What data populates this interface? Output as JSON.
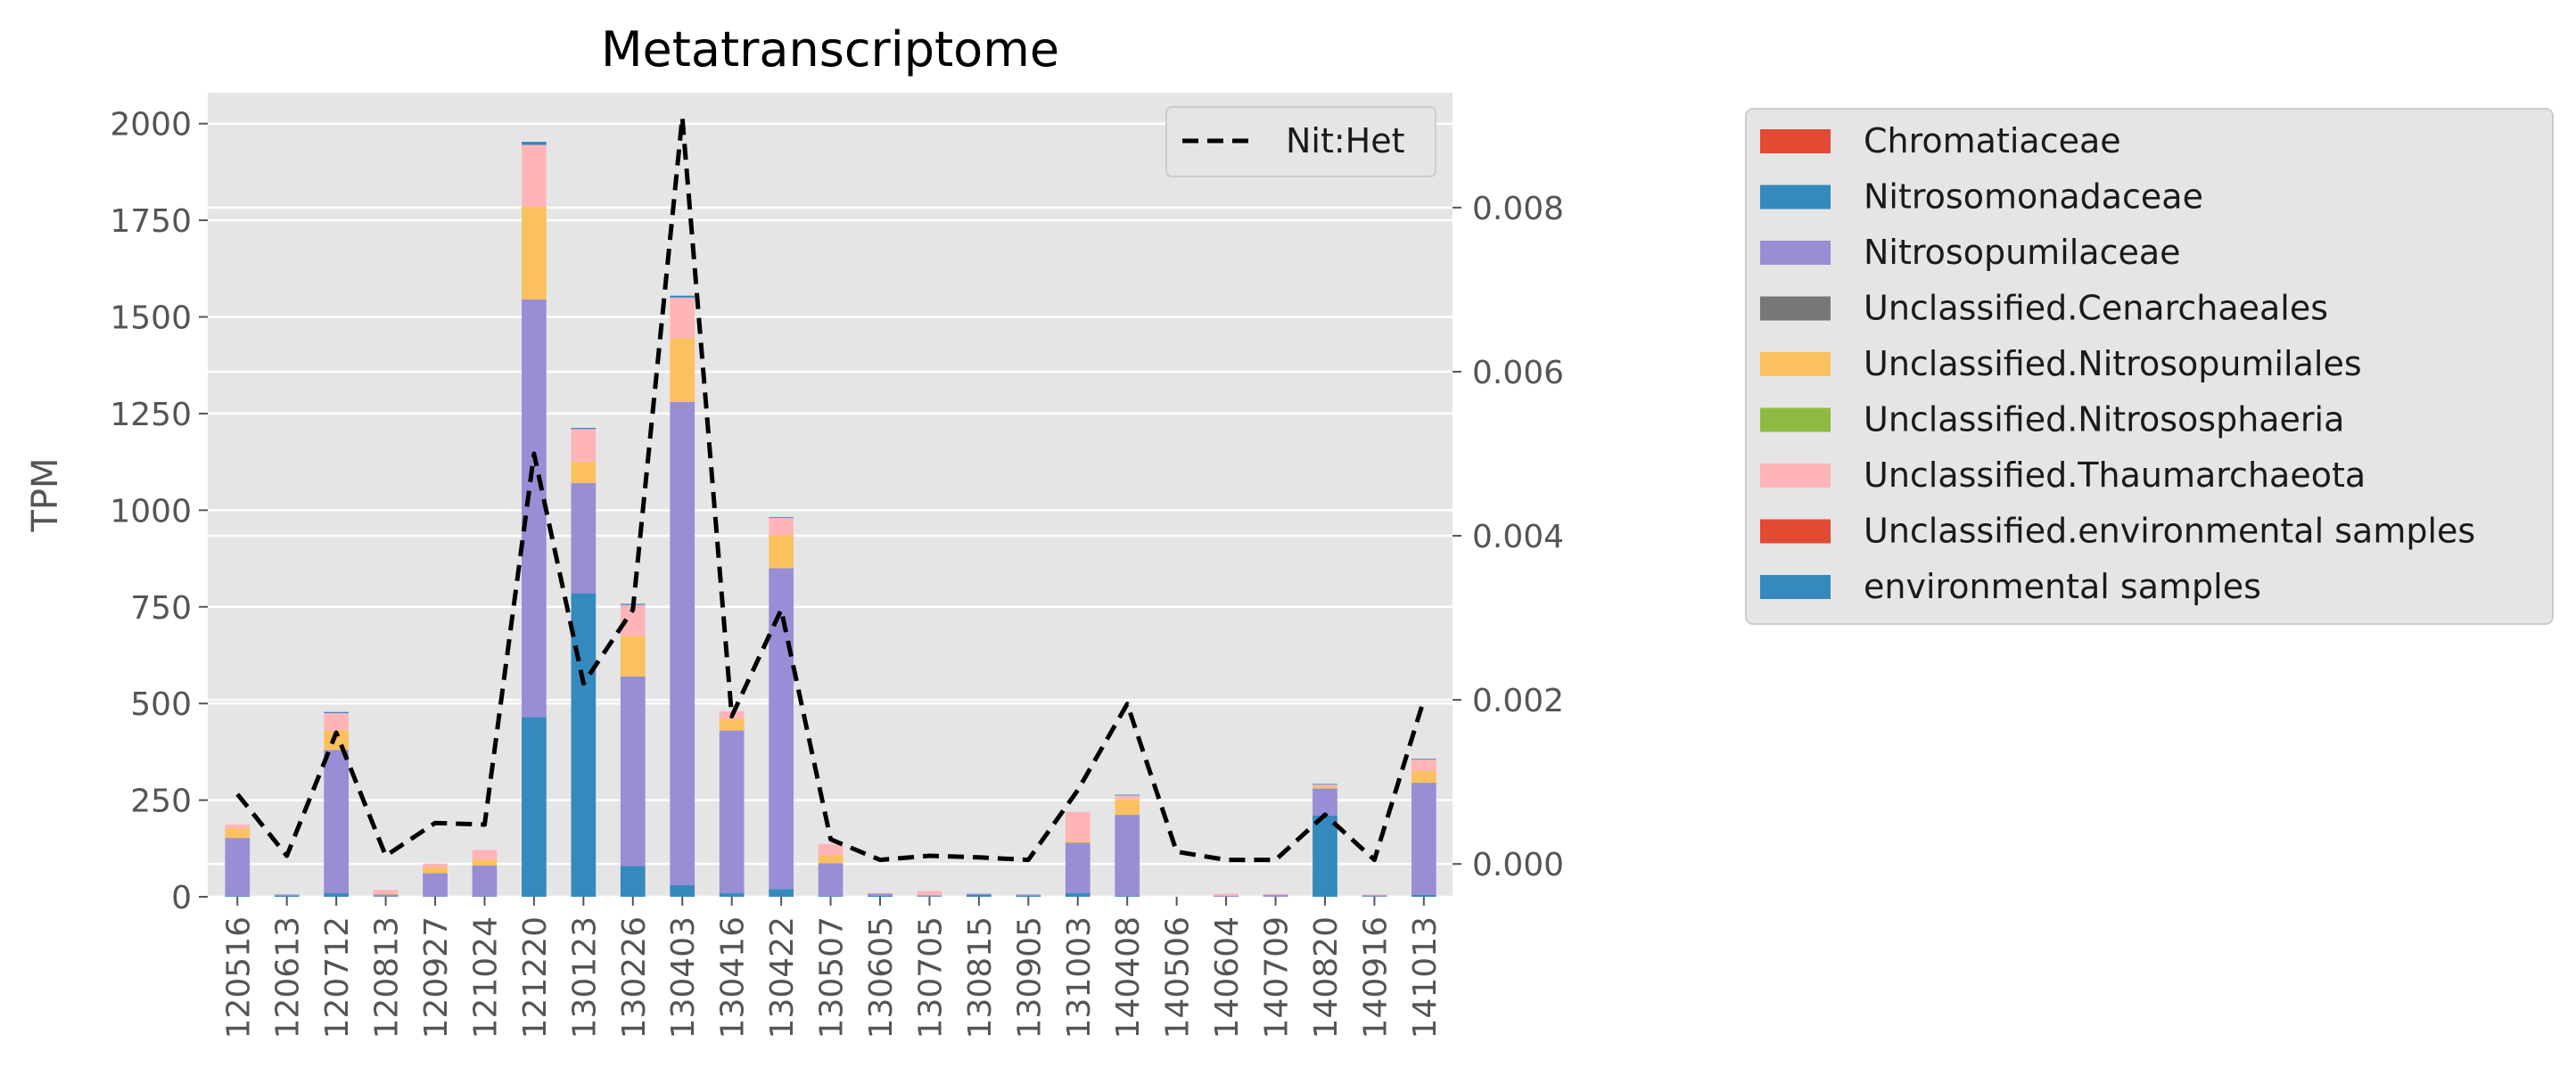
{
  "chart_data": {
    "type": "bar",
    "title": "Metatranscriptome",
    "ylabel": "TPM",
    "xlabel": "",
    "ylim": [
      0,
      2000
    ],
    "y_ticks": [
      0,
      250,
      500,
      750,
      1000,
      1250,
      1500,
      1750,
      2000
    ],
    "y2lim": [
      -0.0004,
      0.0094
    ],
    "y2_ticks": [
      "0.000",
      "0.002",
      "0.004",
      "0.006",
      "0.008"
    ],
    "y2_tick_values": [
      0,
      0.002,
      0.004,
      0.006,
      0.008
    ],
    "grid": true,
    "stacked": true,
    "categories": [
      "120516",
      "120613",
      "120712",
      "120813",
      "120927",
      "121024",
      "121220",
      "130123",
      "130226",
      "130403",
      "130416",
      "130422",
      "130507",
      "130605",
      "130705",
      "130815",
      "130905",
      "131003",
      "140408",
      "140506",
      "140604",
      "140709",
      "140820",
      "140916",
      "141013"
    ],
    "series": [
      {
        "name": "Chromatiaceae",
        "color": "#E24A33",
        "values": [
          0,
          0,
          0,
          0,
          0,
          0,
          0,
          0,
          0,
          0,
          0,
          0,
          0,
          0,
          0,
          0,
          0,
          0,
          0,
          0,
          0,
          0,
          0,
          0,
          0
        ]
      },
      {
        "name": "Nitrosomonadaceae",
        "color": "#348ABD",
        "values": [
          2,
          3,
          10,
          1,
          1,
          1,
          465,
          785,
          80,
          30,
          10,
          20,
          2,
          3,
          1,
          5,
          3,
          10,
          2,
          0,
          0,
          0,
          210,
          1,
          5
        ]
      },
      {
        "name": "Nitrosopumilaceae",
        "color": "#988ED5",
        "values": [
          150,
          3,
          370,
          5,
          60,
          80,
          1080,
          285,
          490,
          1250,
          420,
          830,
          85,
          5,
          3,
          3,
          3,
          130,
          210,
          0,
          3,
          5,
          70,
          3,
          290
        ]
      },
      {
        "name": "Unclassified.Cenarchaeales",
        "color": "#777777",
        "values": [
          0,
          0,
          0,
          0,
          0,
          0,
          0,
          0,
          0,
          0,
          0,
          0,
          0,
          0,
          0,
          0,
          0,
          0,
          0,
          0,
          0,
          0,
          0,
          0,
          0
        ]
      },
      {
        "name": "Unclassified.Nitrosopumilales",
        "color": "#FBC15E",
        "values": [
          25,
          0,
          50,
          2,
          15,
          15,
          240,
          55,
          105,
          165,
          30,
          85,
          20,
          0,
          1,
          0,
          0,
          5,
          40,
          0,
          0,
          0,
          5,
          0,
          30
        ]
      },
      {
        "name": "Unclassified.Nitrososphaeria",
        "color": "#8EBA42",
        "values": [
          0,
          0,
          0,
          0,
          0,
          0,
          0,
          0,
          0,
          0,
          0,
          0,
          0,
          0,
          0,
          0,
          0,
          0,
          0,
          0,
          0,
          0,
          0,
          0,
          0
        ]
      },
      {
        "name": "Unclassified.Thaumarchaeota",
        "color": "#FFB5B8",
        "values": [
          10,
          0,
          45,
          10,
          10,
          25,
          160,
          85,
          80,
          105,
          20,
          45,
          30,
          2,
          10,
          0,
          0,
          75,
          10,
          0,
          5,
          3,
          5,
          2,
          30
        ]
      },
      {
        "name": "Unclassified.environmental samples",
        "color": "#E24A33",
        "values": [
          0,
          0,
          0,
          0,
          0,
          0,
          0,
          0,
          0,
          0,
          0,
          0,
          0,
          0,
          0,
          0,
          0,
          0,
          0,
          0,
          0,
          0,
          0,
          0,
          0
        ]
      },
      {
        "name": "environmental samples",
        "color": "#348ABD",
        "values": [
          0,
          0,
          3,
          0,
          0,
          0,
          8,
          3,
          3,
          5,
          0,
          2,
          0,
          0,
          0,
          0,
          0,
          0,
          2,
          0,
          0,
          0,
          2,
          0,
          2
        ]
      }
    ],
    "line_series": {
      "name": "Nit:Het",
      "color": "#000000",
      "style": "dashed",
      "axis": "right",
      "values": [
        0.00085,
        0.0001,
        0.0016,
        0.0001,
        0.0005,
        0.00048,
        0.005,
        0.0022,
        0.0031,
        0.0091,
        0.0018,
        0.0031,
        0.0003,
        5e-05,
        0.0001,
        8e-05,
        5e-05,
        0.0009,
        0.00195,
        0.00015,
        5e-05,
        5e-05,
        0.0006,
        5e-05,
        0.002
      ]
    },
    "legend_position": "outside-right",
    "line_legend_position": "top-right"
  }
}
